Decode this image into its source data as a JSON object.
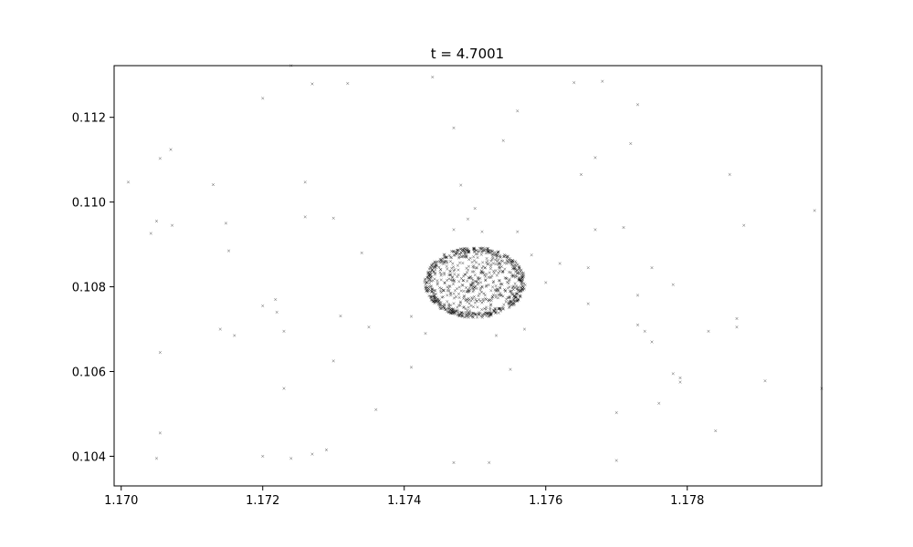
{
  "chart_data": {
    "type": "scatter",
    "title": "t = 4.7001",
    "xlabel": "",
    "ylabel": "",
    "xlim": [
      1.1699,
      1.1799
    ],
    "ylim": [
      0.1033,
      0.11322
    ],
    "xticks": [
      1.17,
      1.172,
      1.174,
      1.176,
      1.178
    ],
    "xtick_labels": [
      "1.170",
      "1.172",
      "1.174",
      "1.176",
      "1.178"
    ],
    "yticks": [
      0.104,
      0.106,
      0.108,
      0.11,
      0.112
    ],
    "ytick_labels": [
      "0.104",
      "0.106",
      "0.108",
      "0.110",
      "0.112"
    ],
    "grid": false,
    "legend": "none",
    "marker": "x",
    "marker_color": "#000000",
    "cluster": {
      "center": [
        1.175,
        0.1081
      ],
      "radius_x": 0.0007,
      "radius_y": 0.00082,
      "n_points": 900,
      "ring_fraction": 0.55
    },
    "scattered_points": [
      [
        1.1701,
        0.11047
      ],
      [
        1.17042,
        0.10926
      ],
      [
        1.1705,
        0.10955
      ],
      [
        1.17055,
        0.11103
      ],
      [
        1.1707,
        0.11124
      ],
      [
        1.17072,
        0.10945
      ],
      [
        1.17055,
        0.10645
      ],
      [
        1.17055,
        0.10455
      ],
      [
        1.1705,
        0.10395
      ],
      [
        1.1713,
        0.11041
      ],
      [
        1.17148,
        0.1095
      ],
      [
        1.17152,
        0.10885
      ],
      [
        1.1714,
        0.107
      ],
      [
        1.1716,
        0.10685
      ],
      [
        1.172,
        0.11245
      ],
      [
        1.172,
        0.10755
      ],
      [
        1.17218,
        0.1077
      ],
      [
        1.1722,
        0.1074
      ],
      [
        1.1723,
        0.10695
      ],
      [
        1.1723,
        0.1056
      ],
      [
        1.172,
        0.104
      ],
      [
        1.1724,
        0.10395
      ],
      [
        1.1724,
        0.11322
      ],
      [
        1.1726,
        0.11047
      ],
      [
        1.1726,
        0.10965
      ],
      [
        1.1727,
        0.11279
      ],
      [
        1.1727,
        0.10405
      ],
      [
        1.1729,
        0.10415
      ],
      [
        1.173,
        0.10962
      ],
      [
        1.1731,
        0.10731
      ],
      [
        1.173,
        0.10625
      ],
      [
        1.1732,
        0.1128
      ],
      [
        1.1734,
        0.1088
      ],
      [
        1.1735,
        0.10705
      ],
      [
        1.1736,
        0.1051
      ],
      [
        1.1741,
        0.1073
      ],
      [
        1.1741,
        0.1061
      ],
      [
        1.1743,
        0.1069
      ],
      [
        1.1744,
        0.11295
      ],
      [
        1.1747,
        0.11175
      ],
      [
        1.1747,
        0.10935
      ],
      [
        1.1748,
        0.1104
      ],
      [
        1.1749,
        0.1096
      ],
      [
        1.175,
        0.10985
      ],
      [
        1.1751,
        0.1093
      ],
      [
        1.1747,
        0.10385
      ],
      [
        1.1752,
        0.10385
      ],
      [
        1.1753,
        0.10685
      ],
      [
        1.1754,
        0.11145
      ],
      [
        1.1756,
        0.11215
      ],
      [
        1.1756,
        0.1093
      ],
      [
        1.1758,
        0.10875
      ],
      [
        1.1757,
        0.107
      ],
      [
        1.1755,
        0.10605
      ],
      [
        1.176,
        0.1081
      ],
      [
        1.1762,
        0.10855
      ],
      [
        1.1764,
        0.11282
      ],
      [
        1.1766,
        0.10845
      ],
      [
        1.1765,
        0.11065
      ],
      [
        1.1768,
        0.11285
      ],
      [
        1.1767,
        0.11105
      ],
      [
        1.1767,
        0.10935
      ],
      [
        1.177,
        0.10503
      ],
      [
        1.177,
        0.1039
      ],
      [
        1.1766,
        0.1076
      ],
      [
        1.1771,
        0.1094
      ],
      [
        1.1772,
        0.11138
      ],
      [
        1.1773,
        0.1123
      ],
      [
        1.1773,
        0.1078
      ],
      [
        1.1773,
        0.1071
      ],
      [
        1.1774,
        0.10695
      ],
      [
        1.1775,
        0.1067
      ],
      [
        1.1775,
        0.10845
      ],
      [
        1.1776,
        0.10525
      ],
      [
        1.1778,
        0.10805
      ],
      [
        1.1778,
        0.10595
      ],
      [
        1.1779,
        0.10585
      ],
      [
        1.1779,
        0.10575
      ],
      [
        1.1783,
        0.10695
      ],
      [
        1.1784,
        0.1046
      ],
      [
        1.1786,
        0.11065
      ],
      [
        1.1787,
        0.10725
      ],
      [
        1.1787,
        0.10705
      ],
      [
        1.1788,
        0.10945
      ],
      [
        1.1791,
        0.10578
      ],
      [
        1.1798,
        0.1098
      ],
      [
        1.1799,
        0.1056
      ]
    ]
  }
}
